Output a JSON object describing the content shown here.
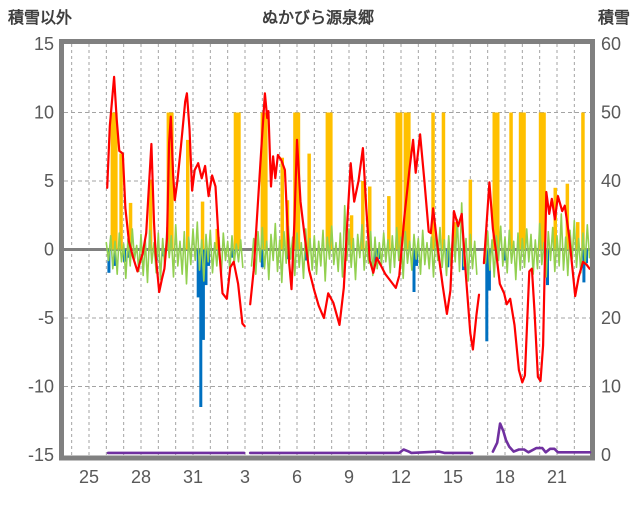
{
  "header": {
    "left_axis_label": "積雪以外",
    "title": "ぬかびら源泉郷",
    "right_axis_label": "積雪"
  },
  "colors": {
    "temperature": "#FF0000",
    "oscillation": "#92D050",
    "sunshine": "#FFC000",
    "precipitation": "#0070C0",
    "snow_depth": "#7030A0",
    "border": "#808080",
    "zero_line": "#808080",
    "grid": "#a3a3a3",
    "tick_text": "#595959"
  },
  "chart_data": {
    "type": "line",
    "title": "ぬかびら源泉郷",
    "left_axis": {
      "label": "積雪以外",
      "range": [
        -15,
        15
      ],
      "ticks": [
        15,
        10,
        5,
        0,
        -5,
        -10,
        -15
      ]
    },
    "right_axis": {
      "label": "積雪",
      "range": [
        0,
        60
      ],
      "ticks": [
        60,
        50,
        40,
        30,
        20,
        10,
        0
      ]
    },
    "x_axis": {
      "day_range": [
        23.55,
        53.95
      ],
      "minor_grid_interval_days": 1,
      "tick_days": [
        25,
        28,
        31,
        34,
        37,
        40,
        43,
        46,
        49,
        52
      ],
      "tick_labels": [
        "25",
        "28",
        "31",
        "3",
        "6",
        "9",
        "12",
        "15",
        "18",
        "21"
      ]
    },
    "grid": true,
    "legend": "none",
    "series": [
      {
        "name": "temperature-line",
        "type": "line",
        "axis": "left",
        "color": "#FF0000",
        "width": 2.2,
        "points": [
          [
            26.05,
            4.5
          ],
          [
            26.2,
            9.0
          ],
          [
            26.45,
            12.6
          ],
          [
            26.6,
            9.5
          ],
          [
            26.75,
            7.2
          ],
          [
            26.95,
            7.0
          ],
          [
            27.1,
            3.0
          ],
          [
            27.3,
            0.6
          ],
          [
            27.55,
            -0.6
          ],
          [
            27.8,
            -1.6
          ],
          [
            27.95,
            -0.9
          ],
          [
            28.1,
            -0.3
          ],
          [
            28.3,
            1.2
          ],
          [
            28.6,
            7.7
          ],
          [
            28.75,
            2.0
          ],
          [
            28.85,
            -0.4
          ],
          [
            29.05,
            -3.1
          ],
          [
            29.2,
            -2.2
          ],
          [
            29.35,
            -1.4
          ],
          [
            29.5,
            0.8
          ],
          [
            29.62,
            7.8
          ],
          [
            29.72,
            9.7
          ],
          [
            29.85,
            5.5
          ],
          [
            29.95,
            3.6
          ],
          [
            30.1,
            5.0
          ],
          [
            30.3,
            7.5
          ],
          [
            30.55,
            10.8
          ],
          [
            30.65,
            11.4
          ],
          [
            30.8,
            8.8
          ],
          [
            30.95,
            4.3
          ],
          [
            31.1,
            5.8
          ],
          [
            31.3,
            6.3
          ],
          [
            31.5,
            5.2
          ],
          [
            31.7,
            6.1
          ],
          [
            31.9,
            3.9
          ],
          [
            32.1,
            5.4
          ],
          [
            32.3,
            4.6
          ],
          [
            32.5,
            0.2
          ],
          [
            32.7,
            -3.2
          ],
          [
            32.95,
            -3.6
          ],
          [
            33.15,
            -1.3
          ],
          [
            33.35,
            -0.9
          ],
          [
            33.6,
            -2.5
          ],
          [
            33.85,
            -5.4
          ],
          [
            33.98,
            -5.6
          ],
          null,
          [
            34.3,
            -4.0
          ],
          [
            34.5,
            -1.5
          ],
          [
            34.75,
            3.5
          ],
          [
            35.0,
            8.5
          ],
          [
            35.15,
            11.4
          ],
          [
            35.28,
            9.6
          ],
          [
            35.35,
            10.1
          ],
          [
            35.5,
            4.6
          ],
          [
            35.62,
            6.8
          ],
          [
            35.75,
            5.2
          ],
          [
            35.9,
            6.9
          ],
          [
            36.1,
            6.5
          ],
          [
            36.3,
            5.8
          ],
          [
            36.55,
            -1.0
          ],
          [
            36.68,
            -2.9
          ],
          [
            36.85,
            2.0
          ],
          [
            37.0,
            8.0
          ],
          [
            37.2,
            3.5
          ],
          [
            37.45,
            0.9
          ],
          [
            37.7,
            -1.5
          ],
          [
            38.0,
            -3.0
          ],
          [
            38.25,
            -4.1
          ],
          [
            38.55,
            -5.0
          ],
          [
            38.8,
            -3.2
          ],
          [
            39.1,
            -3.9
          ],
          [
            39.45,
            -5.5
          ],
          [
            39.7,
            -2.8
          ],
          [
            39.9,
            2.0
          ],
          [
            40.1,
            6.3
          ],
          [
            40.3,
            3.5
          ],
          [
            40.55,
            5.0
          ],
          [
            40.8,
            7.4
          ],
          [
            41.0,
            3.0
          ],
          [
            41.2,
            -0.8
          ],
          [
            41.4,
            -1.7
          ],
          [
            41.6,
            -0.6
          ],
          [
            41.85,
            -1.2
          ],
          [
            42.1,
            -1.8
          ],
          [
            42.4,
            -2.3
          ],
          [
            42.7,
            -2.8
          ],
          [
            42.9,
            -1.9
          ],
          [
            43.2,
            2.5
          ],
          [
            43.5,
            6.0
          ],
          [
            43.7,
            8.0
          ],
          [
            43.85,
            5.6
          ],
          [
            44.1,
            8.4
          ],
          [
            44.35,
            5.0
          ],
          [
            44.6,
            1.3
          ],
          [
            44.72,
            1.2
          ],
          [
            44.85,
            3.0
          ],
          [
            45.1,
            0.3
          ],
          [
            45.4,
            -2.6
          ],
          [
            45.65,
            -4.7
          ],
          [
            45.85,
            -3.0
          ],
          [
            46.05,
            2.8
          ],
          [
            46.3,
            1.7
          ],
          [
            46.5,
            2.6
          ],
          [
            46.75,
            -2.0
          ],
          [
            47.0,
            -6.1
          ],
          [
            47.15,
            -7.3
          ],
          [
            47.35,
            -4.8
          ],
          [
            47.5,
            -3.3
          ],
          null,
          [
            47.78,
            -1.0
          ],
          [
            48.1,
            4.9
          ],
          [
            48.3,
            1.5
          ],
          [
            48.5,
            -0.3
          ],
          [
            48.7,
            -2.5
          ],
          [
            48.95,
            -3.2
          ],
          [
            49.1,
            -4.0
          ],
          [
            49.3,
            -3.6
          ],
          [
            49.55,
            -5.5
          ],
          [
            49.8,
            -8.8
          ],
          [
            50.0,
            -9.7
          ],
          [
            50.15,
            -9.2
          ],
          [
            50.4,
            -1.6
          ],
          [
            50.55,
            -1.4
          ],
          [
            50.7,
            -4.5
          ],
          [
            50.9,
            -9.3
          ],
          [
            51.05,
            -9.6
          ],
          [
            51.2,
            -7.0
          ],
          [
            51.38,
            4.2
          ],
          [
            51.55,
            2.6
          ],
          [
            51.7,
            3.7
          ],
          [
            51.88,
            2.2
          ],
          [
            52.05,
            3.9
          ],
          [
            52.3,
            2.8
          ],
          [
            52.45,
            3.2
          ],
          [
            52.7,
            1.0
          ],
          [
            52.9,
            -1.5
          ],
          [
            53.05,
            -3.4
          ],
          [
            53.25,
            -2.0
          ],
          [
            53.5,
            -0.9
          ],
          [
            53.7,
            -1.1
          ],
          [
            53.88,
            -1.4
          ]
        ]
      },
      {
        "name": "oscillation-line",
        "type": "line",
        "axis": "left",
        "color": "#92D050",
        "width": 1.6,
        "start_day": 26.0,
        "step_days": 0.125,
        "values": [
          0.5,
          -0.8,
          1.0,
          -1.4,
          0.6,
          -1.8,
          1.2,
          -0.9,
          0.4,
          -2.1,
          0.8,
          -1.2,
          1.5,
          -0.7,
          0.3,
          -1.6,
          1.1,
          -1.9,
          0.7,
          -2.4,
          1.4,
          -1.0,
          0.5,
          -1.7,
          1.2,
          -2.2,
          0.8,
          -1.3,
          1.6,
          -0.6,
          1.0,
          -2.0,
          1.8,
          -1.2,
          0.6,
          -1.8,
          1.3,
          -2.5,
          0.9,
          -1.1,
          1.5,
          -0.8,
          2.0,
          -1.5,
          0.7,
          -2.3,
          1.1,
          -0.9,
          1.4,
          -1.7,
          0.5,
          -1.2,
          0.9,
          -2.0,
          1.2,
          -0.8,
          0.6,
          -1.5,
          1.0,
          -1.0,
          0.4,
          -0.9,
          0.7,
          -1.3,
          null,
          null,
          null,
          -1.2,
          0.8,
          -1.8,
          1.3,
          -0.9,
          1.6,
          -1.4,
          0.6,
          -2.2,
          1.1,
          -0.8,
          1.9,
          -1.6,
          0.7,
          -2.4,
          1.3,
          -1.0,
          1.7,
          -0.7,
          0.9,
          -1.9,
          1.2,
          -1.3,
          0.5,
          -2.1,
          1.5,
          -0.9,
          0.8,
          -1.5,
          1.0,
          -1.8,
          0.6,
          -1.2,
          1.4,
          -2.3,
          0.9,
          -0.7,
          1.7,
          -1.1,
          0.5,
          -1.6,
          1.2,
          -2.0,
          3.2,
          -0.8,
          1.5,
          -1.3,
          0.8,
          -2.2,
          1.1,
          -0.6,
          1.8,
          -1.5,
          0.6,
          -1.0,
          1.3,
          -1.9,
          0.9,
          -1.4,
          0.5,
          -1.1,
          1.2,
          -0.9,
          0.7,
          -1.7,
          1.0,
          -1.3,
          1.6,
          -0.8,
          0.9,
          -2.1,
          1.3,
          -1.0,
          0.6,
          -1.5,
          1.1,
          -0.7,
          0.8,
          -1.8,
          1.4,
          -1.1,
          0.5,
          -1.4,
          0.9,
          -2.0,
          1.2,
          -0.8,
          1.6,
          -1.3,
          0.7,
          -1.9,
          1.0,
          -1.2,
          1.5,
          -0.9,
          2.2,
          -1.6,
          3.4,
          -1.2,
          0.8,
          -2.3,
          1.1,
          -1.4,
          0.6,
          -1.8,
          null,
          null,
          null,
          -1.0,
          1.3,
          -1.5,
          0.7,
          -2.0,
          1.0,
          -0.8,
          1.7,
          -1.2,
          0.9,
          -1.7,
          1.4,
          -1.0,
          0.6,
          -2.2,
          1.2,
          -1.5,
          0.8,
          -1.3,
          1.5,
          -0.9,
          1.1,
          -1.8,
          0.7,
          -1.4,
          1.9,
          -1.1,
          0.5,
          -2.0,
          1.3,
          -0.8,
          1.6,
          -1.6,
          1.0,
          -1.2,
          2.6,
          -1.5,
          0.9,
          -1.9,
          1.4,
          -0.7,
          2.1,
          -1.3,
          0.8,
          -1.7,
          1.2,
          -1.0,
          1.8,
          -0.6
        ]
      },
      {
        "name": "sunshine-bars",
        "type": "bar-up",
        "axis": "left",
        "color": "#FFC000",
        "bars": [
          [
            26.45,
            10,
            1
          ],
          [
            26.85,
            7,
            0
          ],
          [
            27.4,
            3.4,
            0
          ],
          [
            28.55,
            5.1,
            0
          ],
          [
            29.68,
            10,
            1
          ],
          [
            30.7,
            8,
            0
          ],
          [
            31.55,
            3.5,
            0
          ],
          [
            32.4,
            1.5,
            0
          ],
          [
            33.55,
            10,
            1
          ],
          [
            35.1,
            10,
            1
          ],
          [
            36.15,
            6.7,
            0
          ],
          [
            36.45,
            3.6,
            0
          ],
          [
            36.98,
            10,
            1
          ],
          [
            37.7,
            7,
            0
          ],
          [
            38.85,
            10,
            1
          ],
          [
            40.15,
            2.5,
            0
          ],
          [
            40.8,
            5,
            0
          ],
          [
            41.2,
            4.6,
            0
          ],
          [
            42.3,
            3.9,
            0
          ],
          [
            42.88,
            10,
            1
          ],
          [
            43.35,
            10,
            1
          ],
          [
            44.85,
            10,
            0
          ],
          [
            45.45,
            10,
            0
          ],
          [
            46.1,
            2,
            0
          ],
          [
            47.0,
            5.1,
            0
          ],
          [
            48.48,
            10,
            1
          ],
          [
            49.35,
            10,
            0
          ],
          [
            50.0,
            10,
            1
          ],
          [
            51.15,
            10,
            1
          ],
          [
            51.9,
            4.5,
            0
          ],
          [
            52.6,
            4.8,
            0
          ],
          [
            53.2,
            2,
            0
          ],
          [
            53.5,
            10,
            0
          ]
        ]
      },
      {
        "name": "precipitation-bars",
        "type": "bar-down",
        "axis": "left",
        "color": "#0070C0",
        "bars": [
          [
            26.15,
            -1.7
          ],
          [
            26.5,
            -1.2
          ],
          [
            27.05,
            -0.9
          ],
          [
            27.3,
            -0.6
          ],
          [
            28.9,
            -0.8
          ],
          [
            29.3,
            -0.5
          ],
          [
            31.3,
            -3.5
          ],
          [
            31.45,
            -11.5
          ],
          [
            31.6,
            -6.6
          ],
          [
            31.75,
            -2.6
          ],
          [
            31.9,
            -1.2
          ],
          [
            33.3,
            -0.6
          ],
          [
            35.0,
            -1.3
          ],
          [
            36.5,
            -0.7
          ],
          [
            37.5,
            -0.8
          ],
          [
            41.55,
            -1.0
          ],
          [
            41.7,
            -0.7
          ],
          [
            43.75,
            -3.1
          ],
          [
            43.9,
            -1.2
          ],
          [
            45.7,
            -1.3
          ],
          [
            46.6,
            -1.5
          ],
          [
            47.95,
            -6.7
          ],
          [
            48.1,
            -3.0
          ],
          [
            49.0,
            -0.8
          ],
          [
            51.45,
            -2.6
          ],
          [
            53.55,
            -2.4
          ],
          [
            53.7,
            -1.0
          ]
        ]
      },
      {
        "name": "snow-depth-line",
        "type": "line",
        "axis": "right",
        "color": "#7030A0",
        "width": 2.6,
        "points": [
          [
            26.1,
            0.3
          ],
          [
            33.95,
            0.3
          ],
          null,
          [
            34.3,
            0.3
          ],
          [
            42.9,
            0.3
          ],
          [
            43.15,
            0.8
          ],
          [
            43.45,
            0.5
          ],
          [
            43.6,
            0.3
          ],
          [
            45.2,
            0.5
          ],
          [
            45.5,
            0.3
          ],
          [
            47.1,
            0.3
          ],
          null,
          [
            48.3,
            0.5
          ],
          [
            48.55,
            1.8
          ],
          [
            48.72,
            4.6
          ],
          [
            48.9,
            3.5
          ],
          [
            49.05,
            2.2
          ],
          [
            49.25,
            1.2
          ],
          [
            49.5,
            0.5
          ],
          [
            49.8,
            0.8
          ],
          [
            50.1,
            0.8
          ],
          [
            50.35,
            0.4
          ],
          [
            50.8,
            1.0
          ],
          [
            51.15,
            1.0
          ],
          [
            51.35,
            0.4
          ],
          [
            51.6,
            0.9
          ],
          [
            51.85,
            0.9
          ],
          [
            52.05,
            0.4
          ],
          [
            53.9,
            0.4
          ]
        ]
      }
    ]
  }
}
